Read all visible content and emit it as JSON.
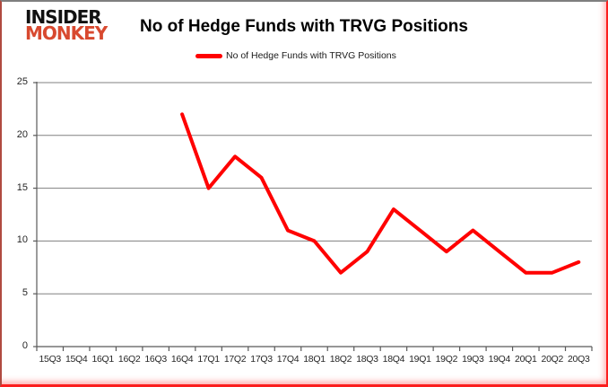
{
  "branding": {
    "logo_line1": "INSIDER",
    "logo_line2": "MONKEY"
  },
  "header": {
    "title": "No of Hedge Funds with TRVG Positions"
  },
  "legend": {
    "label": "No of Hedge Funds with TRVG Positions",
    "line_color": "#ff0000"
  },
  "colors": {
    "series": "#ff0000",
    "gridline": "#808080",
    "axis": "#595959",
    "labels": "#262626"
  },
  "chart_data": {
    "type": "line",
    "title": "No of Hedge Funds with TRVG Positions",
    "categories": [
      "15Q3",
      "15Q4",
      "16Q1",
      "16Q2",
      "16Q3",
      "16Q4",
      "17Q1",
      "17Q2",
      "17Q3",
      "17Q4",
      "18Q1",
      "18Q2",
      "18Q3",
      "18Q4",
      "19Q1",
      "19Q2",
      "19Q3",
      "19Q4",
      "20Q1",
      "20Q2",
      "20Q3"
    ],
    "series": [
      {
        "name": "No of Hedge Funds with TRVG Positions",
        "color": "#ff0000",
        "values": [
          null,
          null,
          null,
          null,
          null,
          22,
          15,
          18,
          16,
          11,
          10,
          7,
          9,
          13,
          11,
          9,
          11,
          9,
          7,
          7,
          8
        ]
      }
    ],
    "y_ticks": [
      0,
      5,
      10,
      15,
      20,
      25
    ],
    "ylim": [
      0,
      25
    ],
    "xlabel": "",
    "ylabel": "",
    "grid": "horizontal",
    "legend_position": "top"
  }
}
